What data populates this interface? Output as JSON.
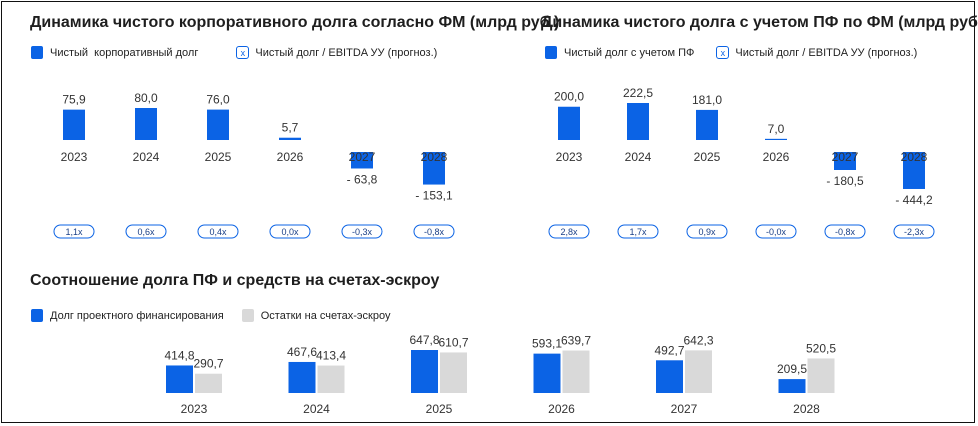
{
  "colors": {
    "primary": "#0b63e5",
    "secondary": "#d9d9d9",
    "text": "#333333"
  },
  "chart_data": [
    {
      "type": "bar",
      "title": "Динамика чистого корпоративного долга согласно ФМ (млрд руб.)",
      "categories": [
        "2023",
        "2024",
        "2025",
        "2026",
        "2027",
        "2028"
      ],
      "series": [
        {
          "name": "Чистый  корпоративный долг",
          "values": [
            75.9,
            80.0,
            76.0,
            5.7,
            -63.8,
            -153.1
          ]
        }
      ],
      "value_labels": [
        "75,9",
        "80,0",
        "76,0",
        "5,7",
        "- 63,8",
        "- 153,1"
      ],
      "ratio_legend": "Чистый долг / EBITDA УУ (прогноз.)",
      "ratio_marker": "x",
      "ratios": [
        "1,1x",
        "0,6x",
        "0,4x",
        "0,0x",
        "-0,3x",
        "-0,8x"
      ],
      "legend_position": "top-left"
    },
    {
      "type": "bar",
      "title": "Динамика чистого долга с учетом ПФ по ФМ (млрд руб.)*",
      "categories": [
        "2023",
        "2024",
        "2025",
        "2026",
        "2027",
        "2028"
      ],
      "series": [
        {
          "name": "Чистый долг с учетом ПФ",
          "values": [
            200.0,
            222.5,
            181.0,
            7.0,
            -180.5,
            -444.2
          ]
        }
      ],
      "value_labels": [
        "200,0",
        "222,5",
        "181,0",
        "7,0",
        "- 180,5",
        "- 444,2"
      ],
      "ratio_legend": "Чистый долг / EBITDA УУ (прогноз.)",
      "ratio_marker": "x",
      "ratios": [
        "2,8x",
        "1,7x",
        "0,9x",
        "-0,0x",
        "-0,8x",
        "-2,3x"
      ],
      "legend_position": "top-left"
    },
    {
      "type": "bar",
      "title": "Соотношение долга ПФ и средств на счетах-эскроу",
      "categories": [
        "2023",
        "2024",
        "2025",
        "2026",
        "2027",
        "2028"
      ],
      "series": [
        {
          "name": "Долг проектного финансирования",
          "values": [
            414.8,
            467.6,
            647.8,
            593.1,
            492.7,
            209.5
          ],
          "labels": [
            "414,8",
            "467,6",
            "647,8",
            "593,1",
            "492,7",
            "209,5"
          ]
        },
        {
          "name": "Остатки на счетах-эскроу",
          "values": [
            290.7,
            413.4,
            610.7,
            639.7,
            642.3,
            520.5
          ],
          "labels": [
            "290,7",
            "413,4",
            "610,7",
            "639,7",
            "642,3",
            "520,5"
          ]
        }
      ],
      "legend_position": "top-left"
    }
  ]
}
